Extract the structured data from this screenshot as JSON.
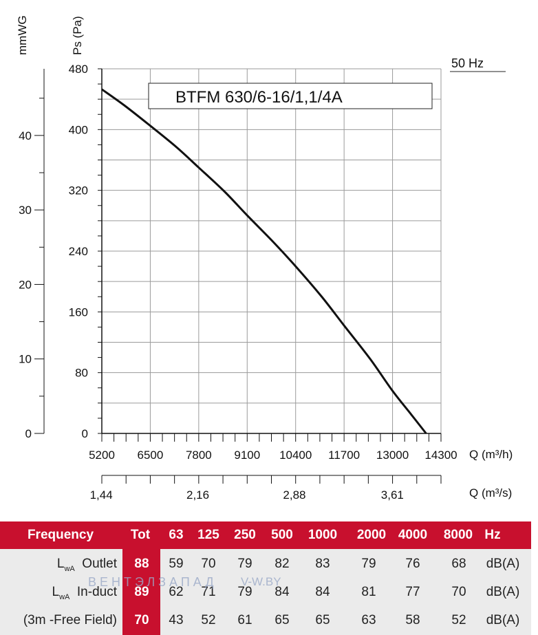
{
  "chart_data": {
    "type": "line",
    "title": "BTFM 630/6-16/1,1/4A",
    "frequency_label": "50 Hz",
    "ylabel": "Ps (Pa)",
    "ylabel2": "mmWG",
    "xlabel": "Q (m³/h)",
    "xlabel2": "Q (m³/s)",
    "xlim": [
      5200,
      14300
    ],
    "ylim": [
      0,
      480
    ],
    "xticks": [
      5200,
      6500,
      7800,
      9100,
      10400,
      11700,
      13000,
      14300
    ],
    "xtick_labels": [
      "5200",
      "6500",
      "7800",
      "9100",
      "10400",
      "11700",
      "13000",
      "14300"
    ],
    "yticks": [
      0,
      80,
      160,
      240,
      320,
      400,
      480
    ],
    "ytick_labels": [
      "0",
      "80",
      "160",
      "240",
      "320",
      "400",
      "480"
    ],
    "y2ticks": [
      0,
      10,
      20,
      30,
      40
    ],
    "y2tick_labels": [
      "0",
      "10",
      "20",
      "30",
      "40"
    ],
    "x2ticks": [
      1.44,
      2.16,
      2.88,
      3.61
    ],
    "x2tick_labels": [
      "1,44",
      "2,16",
      "2,88",
      "3,61"
    ],
    "grid": true,
    "series": [
      {
        "x": [
          5200,
          5800,
          6500,
          7200,
          7800,
          8500,
          9100,
          9800,
          10400,
          11100,
          11700,
          12400,
          13000,
          13500,
          13900
        ],
        "y": [
          453,
          432,
          405,
          377,
          350,
          318,
          287,
          252,
          220,
          180,
          142,
          98,
          56,
          25,
          0
        ]
      }
    ]
  },
  "sound_table": {
    "header": {
      "frequency": "Frequency",
      "tot": "Tot",
      "bands": [
        "63",
        "125",
        "250",
        "500",
        "1000",
        "2000",
        "4000",
        "8000"
      ],
      "unit": "Hz"
    },
    "rows": [
      {
        "lw": "L",
        "sub": "wA",
        "label": "Outlet",
        "tot": "88",
        "values": [
          "59",
          "70",
          "79",
          "82",
          "83",
          "79",
          "76",
          "68"
        ],
        "unit": "dB(A)"
      },
      {
        "lw": "L",
        "sub": "wA",
        "label": "In-duct",
        "tot": "89",
        "values": [
          "62",
          "71",
          "79",
          "84",
          "84",
          "81",
          "77",
          "70"
        ],
        "unit": "dB(A)"
      },
      {
        "lw": "",
        "sub": "",
        "label": "(3m -Free Field)",
        "tot": "70",
        "values": [
          "43",
          "52",
          "61",
          "65",
          "65",
          "63",
          "58",
          "52"
        ],
        "unit": "dB(A)"
      }
    ],
    "watermark_left": "ВЕНТЭЛЗАПАД",
    "watermark_right": "V-W.BY",
    "brand_color": "#c8102e"
  }
}
